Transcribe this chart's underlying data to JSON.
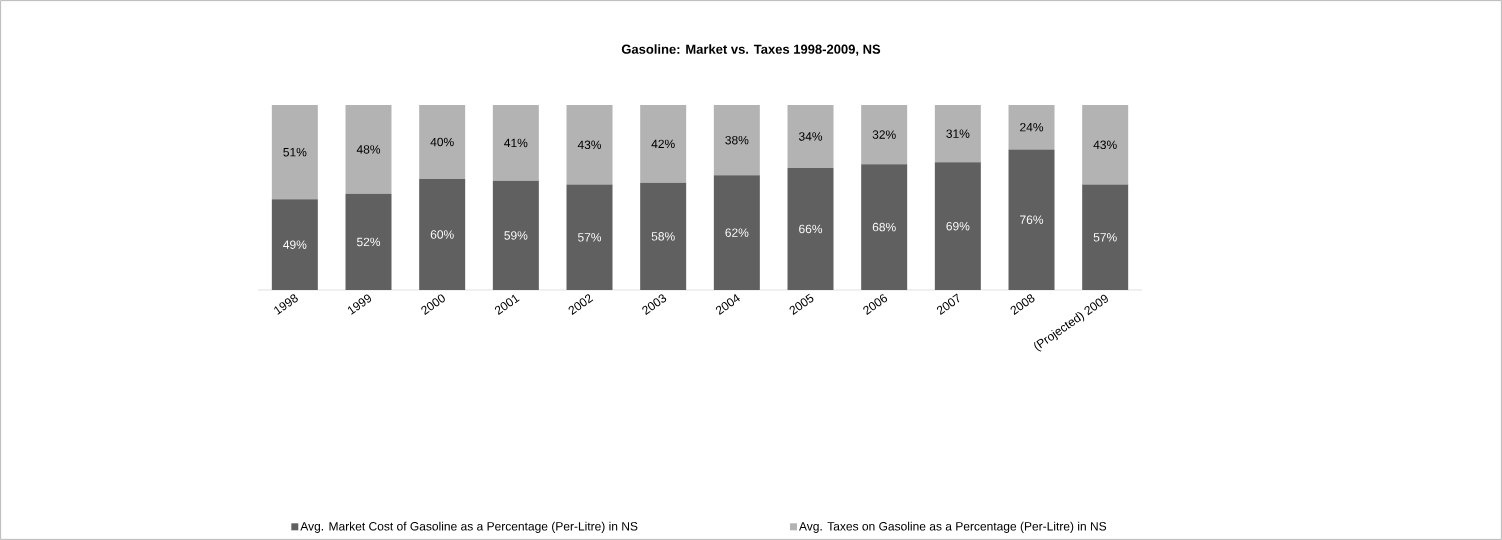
{
  "chart_data": {
    "type": "bar",
    "title": "Gasoline: Market vs. Taxes 1998-2009, NS",
    "stacked": true,
    "legend": "bottom",
    "categories": [
      "1998",
      "1999",
      "2000",
      "2001",
      "2002",
      "2003",
      "2004",
      "2005",
      "2006",
      "2007",
      "2008",
      "(Projected) 2009"
    ],
    "series": [
      {
        "name": "Avg. Market Cost of Gasoline as a Percentage (Per-Litre) in NS",
        "color": "#606060",
        "values": [
          49,
          52,
          60,
          59,
          57,
          58,
          62,
          66,
          68,
          69,
          76,
          57
        ],
        "value_labels": [
          "49%",
          "52%",
          "60%",
          "59%",
          "57%",
          "58%",
          "62%",
          "66%",
          "68%",
          "69%",
          "76%",
          "57%"
        ]
      },
      {
        "name": "Avg. Taxes on Gasoline as a Percentage (Per-Litre) in NS",
        "color": "#b3b3b3",
        "values": [
          51,
          48,
          40,
          41,
          43,
          42,
          38,
          34,
          32,
          31,
          24,
          43
        ],
        "value_labels": [
          "51%",
          "48%",
          "40%",
          "41%",
          "43%",
          "42%",
          "38%",
          "34%",
          "32%",
          "31%",
          "24%",
          "43%"
        ]
      }
    ]
  }
}
